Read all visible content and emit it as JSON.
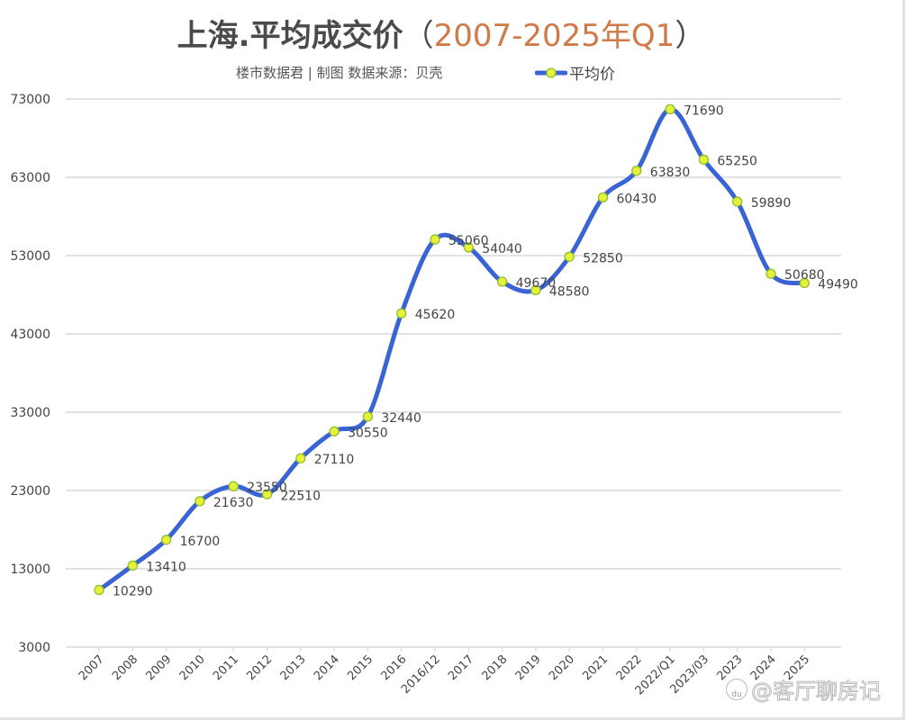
{
  "header": {
    "title_main": "上海.平均成交价",
    "title_open": "（",
    "title_range": "2007-2025年Q1",
    "title_close": "）",
    "subtitle": "楼市数据君 | 制图    数据来源：贝壳",
    "legend_label": "平均价"
  },
  "watermark": {
    "text": "@客厅聊房记",
    "icon": "baidu-paw-icon",
    "icon_text": "du"
  },
  "colors": {
    "line": "#3a63d6",
    "marker_fill": "#e6f23a",
    "marker_stroke": "#8fbf2a",
    "grid": "#d9d9d9",
    "title_accent": "#d07a4a"
  },
  "chart_data": {
    "type": "line",
    "title": "上海.平均成交价（2007-2025年Q1）",
    "subtitle": "楼市数据君 | 制图  数据来源：贝壳",
    "xlabel": "",
    "ylabel": "",
    "ylim": [
      3000,
      73000
    ],
    "yticks": [
      3000,
      13000,
      23000,
      33000,
      43000,
      53000,
      63000,
      73000
    ],
    "grid": true,
    "legend_position": "top",
    "smooth": true,
    "categories": [
      "2007",
      "2008",
      "2009",
      "2010",
      "2011",
      "2012",
      "2013",
      "2014",
      "2015",
      "2016",
      "2016/12",
      "2017",
      "2018",
      "2019",
      "2020",
      "2021",
      "2022",
      "2022/Q1",
      "2023/03",
      "2023",
      "2024",
      "2025"
    ],
    "series": [
      {
        "name": "平均价",
        "values": [
          10290,
          13410,
          16700,
          21630,
          23550,
          22510,
          27110,
          30550,
          32440,
          45620,
          55060,
          54040,
          49670,
          48580,
          52850,
          60430,
          63830,
          71690,
          65250,
          59890,
          50680,
          49490
        ]
      }
    ]
  }
}
